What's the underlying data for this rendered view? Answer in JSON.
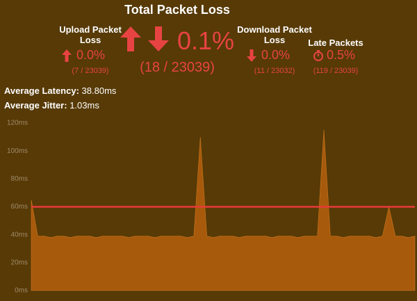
{
  "total": {
    "title": "Total Packet Loss",
    "percent": "0.1%",
    "count": "(18 / 23039)"
  },
  "upload": {
    "title": "Upload Packet Loss",
    "percent": "0.0%",
    "count": "(7 / 23039)"
  },
  "download": {
    "title": "Download Packet Loss",
    "percent": "0.0%",
    "count": "(11 / 23032)"
  },
  "late": {
    "title": "Late Packets",
    "percent": "0.5%",
    "count": "(119 / 23039)"
  },
  "latency": {
    "label": "Average Latency:",
    "value": "38.80ms"
  },
  "jitter": {
    "label": "Average Jitter:",
    "value": "1.03ms"
  },
  "chart_data": {
    "type": "area",
    "color": "#a85a0c",
    "reference_line": 60,
    "reference_color": "#e8393a",
    "ylim": [
      0,
      120
    ],
    "yticks": [
      {
        "value": 0,
        "label": "0ms"
      },
      {
        "value": 20,
        "label": "20ms"
      },
      {
        "value": 40,
        "label": "40ms"
      },
      {
        "value": 60,
        "label": "60ms"
      },
      {
        "value": 80,
        "label": "80ms"
      },
      {
        "value": 100,
        "label": "100ms"
      },
      {
        "value": 120,
        "label": "120ms"
      }
    ],
    "values": [
      65,
      39,
      39,
      38,
      39,
      39,
      38,
      39,
      39,
      39,
      38,
      39,
      39,
      39,
      39,
      38,
      39,
      39,
      39,
      38,
      39,
      39,
      39,
      39,
      38,
      39,
      110,
      39,
      38,
      39,
      39,
      39,
      38,
      39,
      39,
      39,
      39,
      38,
      39,
      39,
      39,
      38,
      39,
      39,
      39,
      115,
      39,
      39,
      38,
      39,
      39,
      39,
      39,
      38,
      39,
      60,
      39,
      39,
      38,
      39
    ]
  }
}
